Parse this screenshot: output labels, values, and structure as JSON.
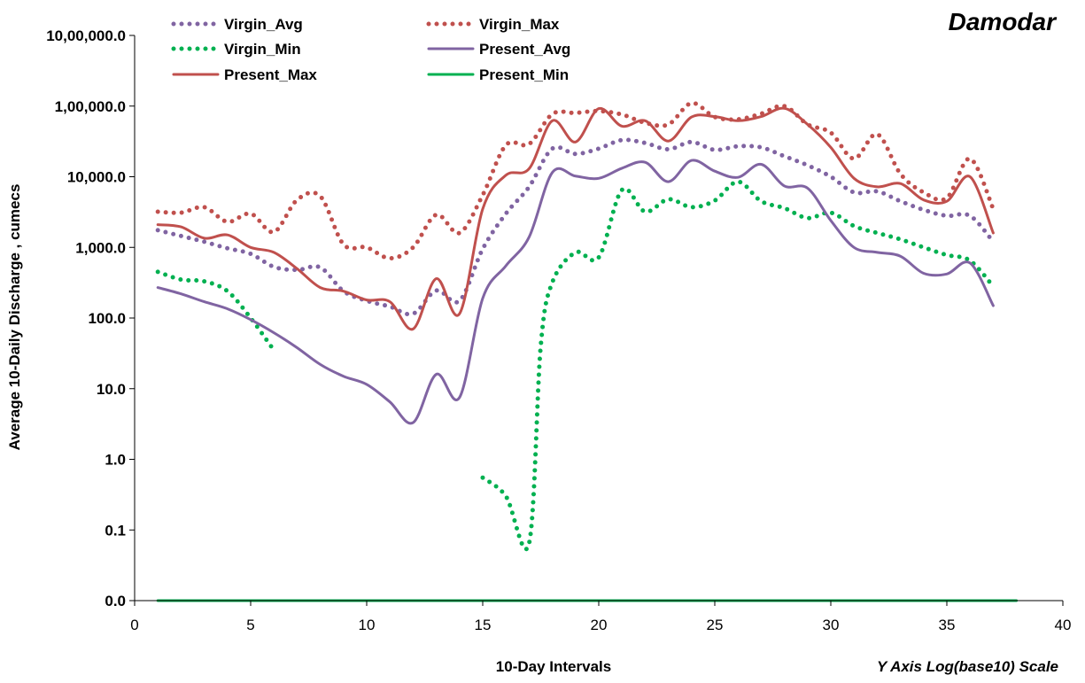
{
  "chart_data": {
    "type": "line",
    "title": "Damodar",
    "xlabel": "10-Day Intervals",
    "ylabel": "Average 10-Daily Discharge , cumecs",
    "scale_note": "Y  Axis  Log(base10)  Scale",
    "y_scale": "log10",
    "xlim": [
      0,
      40
    ],
    "ylim": [
      0.01,
      1000000
    ],
    "x_ticks": [
      0,
      5,
      10,
      15,
      20,
      25,
      30,
      35,
      40
    ],
    "y_ticks": [
      {
        "value": 0.01,
        "label": "0.0"
      },
      {
        "value": 0.1,
        "label": "0.1"
      },
      {
        "value": 1,
        "label": "1.0"
      },
      {
        "value": 10,
        "label": "10.0"
      },
      {
        "value": 100,
        "label": "100.0"
      },
      {
        "value": 1000,
        "label": "1,000.0"
      },
      {
        "value": 10000,
        "label": "10,000.0"
      },
      {
        "value": 100000,
        "label": "1,00,000.0"
      },
      {
        "value": 1000000,
        "label": "10,00,000.0"
      }
    ],
    "grid": false,
    "legend_position": "top",
    "series": [
      {
        "name": "Virgin_Avg",
        "color": "#8064A2",
        "style": "dotted",
        "points": [
          [
            1,
            1750
          ],
          [
            2,
            1450
          ],
          [
            3,
            1200
          ],
          [
            4,
            970
          ],
          [
            5,
            810
          ],
          [
            6,
            530
          ],
          [
            7,
            480
          ],
          [
            8,
            520
          ],
          [
            9,
            240
          ],
          [
            10,
            175
          ],
          [
            11,
            145
          ],
          [
            12,
            115
          ],
          [
            13,
            245
          ],
          [
            14,
            175
          ],
          [
            15,
            950
          ],
          [
            16,
            3000
          ],
          [
            17,
            7200
          ],
          [
            18,
            25000
          ],
          [
            19,
            21000
          ],
          [
            20,
            25000
          ],
          [
            21,
            33000
          ],
          [
            22,
            30000
          ],
          [
            23,
            24500
          ],
          [
            24,
            31000
          ],
          [
            25,
            24000
          ],
          [
            26,
            27000
          ],
          [
            27,
            26000
          ],
          [
            28,
            19500
          ],
          [
            29,
            14500
          ],
          [
            30,
            10000
          ],
          [
            31,
            6000
          ],
          [
            32,
            6200
          ],
          [
            33,
            4500
          ],
          [
            34,
            3400
          ],
          [
            35,
            2800
          ],
          [
            36,
            2800
          ],
          [
            37,
            1200
          ]
        ]
      },
      {
        "name": "Virgin_Max",
        "color": "#C0504D",
        "style": "dotted",
        "points": [
          [
            1,
            3200
          ],
          [
            2,
            3100
          ],
          [
            3,
            3700
          ],
          [
            4,
            2300
          ],
          [
            5,
            3000
          ],
          [
            6,
            1650
          ],
          [
            7,
            4700
          ],
          [
            8,
            5300
          ],
          [
            9,
            1100
          ],
          [
            10,
            1000
          ],
          [
            11,
            700
          ],
          [
            12,
            1000
          ],
          [
            13,
            2900
          ],
          [
            14,
            1600
          ],
          [
            15,
            5500
          ],
          [
            16,
            28000
          ],
          [
            17,
            29000
          ],
          [
            18,
            77000
          ],
          [
            19,
            80000
          ],
          [
            20,
            85000
          ],
          [
            21,
            76000
          ],
          [
            22,
            58000
          ],
          [
            23,
            55000
          ],
          [
            24,
            110000
          ],
          [
            25,
            70000
          ],
          [
            26,
            65000
          ],
          [
            27,
            78000
          ],
          [
            28,
            100000
          ],
          [
            29,
            55000
          ],
          [
            30,
            42000
          ],
          [
            31,
            18000
          ],
          [
            32,
            40000
          ],
          [
            33,
            11000
          ],
          [
            34,
            6000
          ],
          [
            35,
            5000
          ],
          [
            36,
            18000
          ],
          [
            37,
            3500
          ]
        ]
      },
      {
        "name": "Virgin_Min",
        "color": "#00B050",
        "style": "dotted",
        "points": [
          [
            1,
            450
          ],
          [
            2,
            350
          ],
          [
            3,
            330
          ],
          [
            4,
            240
          ],
          [
            5,
            100
          ],
          [
            6,
            35
          ],
          [
            null,
            null
          ],
          [
            15,
            0.55
          ],
          [
            16,
            0.3
          ],
          [
            17,
            0.065
          ],
          [
            17.5,
            40
          ],
          [
            18,
            320
          ],
          [
            19,
            850
          ],
          [
            20,
            720
          ],
          [
            21,
            6500
          ],
          [
            22,
            3200
          ],
          [
            23,
            4800
          ],
          [
            24,
            3700
          ],
          [
            25,
            4600
          ],
          [
            26,
            8500
          ],
          [
            27,
            4500
          ],
          [
            28,
            3600
          ],
          [
            29,
            2600
          ],
          [
            30,
            3100
          ],
          [
            31,
            2000
          ],
          [
            32,
            1600
          ],
          [
            33,
            1300
          ],
          [
            34,
            1000
          ],
          [
            35,
            780
          ],
          [
            36,
            650
          ],
          [
            37,
            280
          ]
        ]
      },
      {
        "name": "Present_Avg",
        "color": "#8064A2",
        "style": "solid",
        "points": [
          [
            1,
            270
          ],
          [
            2,
            220
          ],
          [
            3,
            170
          ],
          [
            4,
            135
          ],
          [
            5,
            95
          ],
          [
            6,
            62
          ],
          [
            7,
            38
          ],
          [
            8,
            22
          ],
          [
            9,
            15
          ],
          [
            10,
            11.5
          ],
          [
            11,
            6.5
          ],
          [
            12,
            3.3
          ],
          [
            13,
            16
          ],
          [
            14,
            7.5
          ],
          [
            15,
            190
          ],
          [
            16,
            550
          ],
          [
            17,
            1400
          ],
          [
            18,
            11500
          ],
          [
            19,
            10200
          ],
          [
            20,
            9500
          ],
          [
            21,
            13200
          ],
          [
            22,
            16000
          ],
          [
            23,
            8500
          ],
          [
            24,
            17000
          ],
          [
            25,
            12000
          ],
          [
            26,
            9800
          ],
          [
            27,
            15000
          ],
          [
            28,
            7400
          ],
          [
            29,
            6900
          ],
          [
            30,
            2400
          ],
          [
            31,
            1000
          ],
          [
            32,
            850
          ],
          [
            33,
            750
          ],
          [
            34,
            430
          ],
          [
            35,
            420
          ],
          [
            36,
            600
          ],
          [
            37,
            150
          ]
        ]
      },
      {
        "name": "Present_Max",
        "color": "#C0504D",
        "style": "solid",
        "points": [
          [
            1,
            2100
          ],
          [
            2,
            1950
          ],
          [
            3,
            1350
          ],
          [
            4,
            1500
          ],
          [
            5,
            1000
          ],
          [
            6,
            850
          ],
          [
            7,
            500
          ],
          [
            8,
            270
          ],
          [
            9,
            240
          ],
          [
            10,
            180
          ],
          [
            11,
            170
          ],
          [
            12,
            70
          ],
          [
            13,
            360
          ],
          [
            14,
            115
          ],
          [
            15,
            3500
          ],
          [
            16,
            10500
          ],
          [
            17,
            13000
          ],
          [
            18,
            62000
          ],
          [
            19,
            31000
          ],
          [
            20,
            92000
          ],
          [
            21,
            52000
          ],
          [
            22,
            62000
          ],
          [
            23,
            32000
          ],
          [
            24,
            70000
          ],
          [
            25,
            71000
          ],
          [
            26,
            62000
          ],
          [
            27,
            71000
          ],
          [
            28,
            93000
          ],
          [
            29,
            55000
          ],
          [
            30,
            26000
          ],
          [
            31,
            9500
          ],
          [
            32,
            7200
          ],
          [
            33,
            8000
          ],
          [
            34,
            4700
          ],
          [
            35,
            4500
          ],
          [
            36,
            10000
          ],
          [
            37,
            1600
          ]
        ]
      },
      {
        "name": "Present_Min",
        "color": "#00B050",
        "style": "solid",
        "points": [
          [
            1,
            0.01
          ],
          [
            38,
            0.01
          ]
        ]
      }
    ]
  }
}
